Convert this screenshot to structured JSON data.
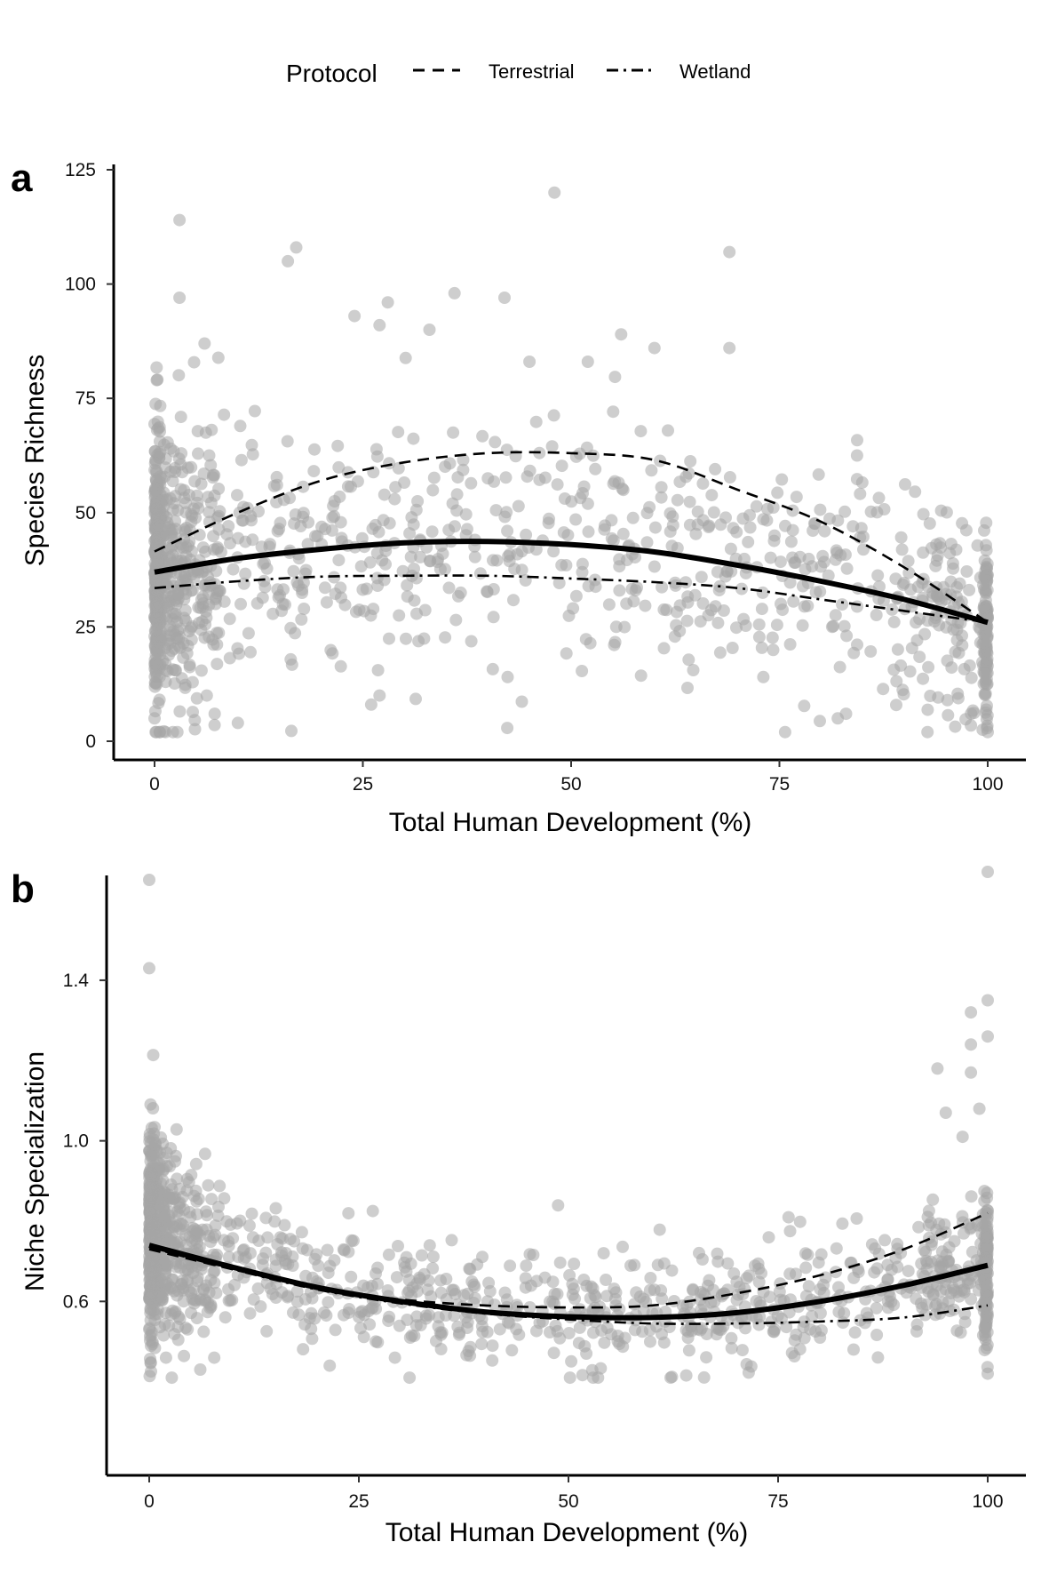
{
  "legend": {
    "title": "Protocol",
    "items": [
      {
        "label": "Terrestrial",
        "linetype": "dashed"
      },
      {
        "label": "Wetland",
        "linetype": "dotdash"
      }
    ]
  },
  "chart_data": [
    {
      "panel": "a",
      "type": "scatter",
      "xlabel": "Total Human Development (%)",
      "ylabel": "Species Richness",
      "xlim": [
        0,
        100
      ],
      "ylim": [
        0,
        125
      ],
      "x_ticks": [
        0,
        25,
        50,
        75,
        100
      ],
      "y_ticks": [
        0,
        25,
        50,
        75,
        100,
        125
      ],
      "grid": false,
      "point_color": "#a6a6a6",
      "highlight_points": [
        {
          "x": 48,
          "y": 120
        },
        {
          "x": 3,
          "y": 114
        },
        {
          "x": 17,
          "y": 108
        },
        {
          "x": 16,
          "y": 105
        },
        {
          "x": 69,
          "y": 107
        },
        {
          "x": 3,
          "y": 97
        },
        {
          "x": 36,
          "y": 98
        },
        {
          "x": 42,
          "y": 97
        },
        {
          "x": 28,
          "y": 96
        },
        {
          "x": 24,
          "y": 93
        },
        {
          "x": 27,
          "y": 91
        },
        {
          "x": 33,
          "y": 90
        },
        {
          "x": 56,
          "y": 89
        },
        {
          "x": 6,
          "y": 87
        },
        {
          "x": 60,
          "y": 86
        },
        {
          "x": 69,
          "y": 86
        },
        {
          "x": 45,
          "y": 83
        },
        {
          "x": 52,
          "y": 83
        },
        {
          "x": 26,
          "y": 8
        },
        {
          "x": 27,
          "y": 10
        },
        {
          "x": 10,
          "y": 4
        },
        {
          "x": 83,
          "y": 6
        },
        {
          "x": 82,
          "y": 5
        },
        {
          "x": 100,
          "y": 2
        },
        {
          "x": 98,
          "y": 6
        },
        {
          "x": 0,
          "y": 5
        }
      ],
      "series": [
        {
          "name": "",
          "linetype": "solid",
          "x": [
            0,
            10,
            20,
            30,
            40,
            50,
            60,
            70,
            80,
            90,
            100
          ],
          "y": [
            37,
            40,
            42,
            43.4,
            43.7,
            43,
            41.4,
            38.5,
            35,
            31,
            26
          ]
        },
        {
          "name": "Terrestrial",
          "linetype": "dashed",
          "x": [
            0,
            10,
            20,
            30,
            40,
            50,
            60,
            70,
            80,
            90,
            100
          ],
          "y": [
            41.5,
            50,
            57,
            61,
            63,
            63,
            61.5,
            55,
            48,
            38,
            26
          ]
        },
        {
          "name": "Wetland",
          "linetype": "dotdash",
          "x": [
            0,
            10,
            20,
            30,
            40,
            50,
            60,
            70,
            80,
            90,
            100
          ],
          "y": [
            33.5,
            35,
            36,
            36.2,
            36.2,
            35.6,
            34.8,
            33.5,
            31,
            28.5,
            26
          ]
        }
      ]
    },
    {
      "panel": "b",
      "type": "scatter",
      "xlabel": "Total Human Development (%)",
      "ylabel": "Niche Specialization",
      "xlim": [
        0,
        100
      ],
      "ylim": [
        0.2,
        1.65
      ],
      "x_ticks": [
        0,
        25,
        50,
        75,
        100
      ],
      "y_ticks": [
        0.6,
        1.0,
        1.4
      ],
      "grid": false,
      "point_color": "#a6a6a6",
      "highlight_points": [
        {
          "x": 0,
          "y": 1.65
        },
        {
          "x": 100,
          "y": 1.67
        },
        {
          "x": 0,
          "y": 1.43
        },
        {
          "x": 100,
          "y": 1.35
        },
        {
          "x": 98,
          "y": 1.32
        },
        {
          "x": 100,
          "y": 1.26
        },
        {
          "x": 98,
          "y": 1.24
        },
        {
          "x": 94,
          "y": 1.18
        },
        {
          "x": 98,
          "y": 1.17
        },
        {
          "x": 99,
          "y": 1.08
        },
        {
          "x": 95,
          "y": 1.07
        },
        {
          "x": 97,
          "y": 1.01
        },
        {
          "x": 100,
          "y": 0.42
        },
        {
          "x": 2,
          "y": 0.46
        },
        {
          "x": 84,
          "y": 0.48
        },
        {
          "x": 80,
          "y": 0.51
        },
        {
          "x": 68,
          "y": 0.53
        }
      ],
      "series": [
        {
          "name": "",
          "linetype": "solid",
          "x": [
            0,
            10,
            20,
            30,
            40,
            50,
            60,
            70,
            80,
            90,
            100
          ],
          "y": [
            0.74,
            0.685,
            0.635,
            0.6,
            0.574,
            0.562,
            0.56,
            0.572,
            0.6,
            0.64,
            0.69
          ]
        },
        {
          "name": "Terrestrial",
          "linetype": "dashed",
          "x": [
            0,
            10,
            20,
            30,
            40,
            50,
            60,
            70,
            80,
            90,
            100
          ],
          "y": [
            0.73,
            0.68,
            0.635,
            0.605,
            0.59,
            0.585,
            0.59,
            0.62,
            0.665,
            0.73,
            0.82
          ]
        },
        {
          "name": "Wetland",
          "linetype": "dotdash",
          "x": [
            0,
            10,
            20,
            30,
            40,
            50,
            60,
            70,
            80,
            90,
            100
          ],
          "y": [
            0.735,
            0.68,
            0.63,
            0.595,
            0.57,
            0.555,
            0.545,
            0.545,
            0.55,
            0.56,
            0.59
          ]
        }
      ]
    }
  ]
}
